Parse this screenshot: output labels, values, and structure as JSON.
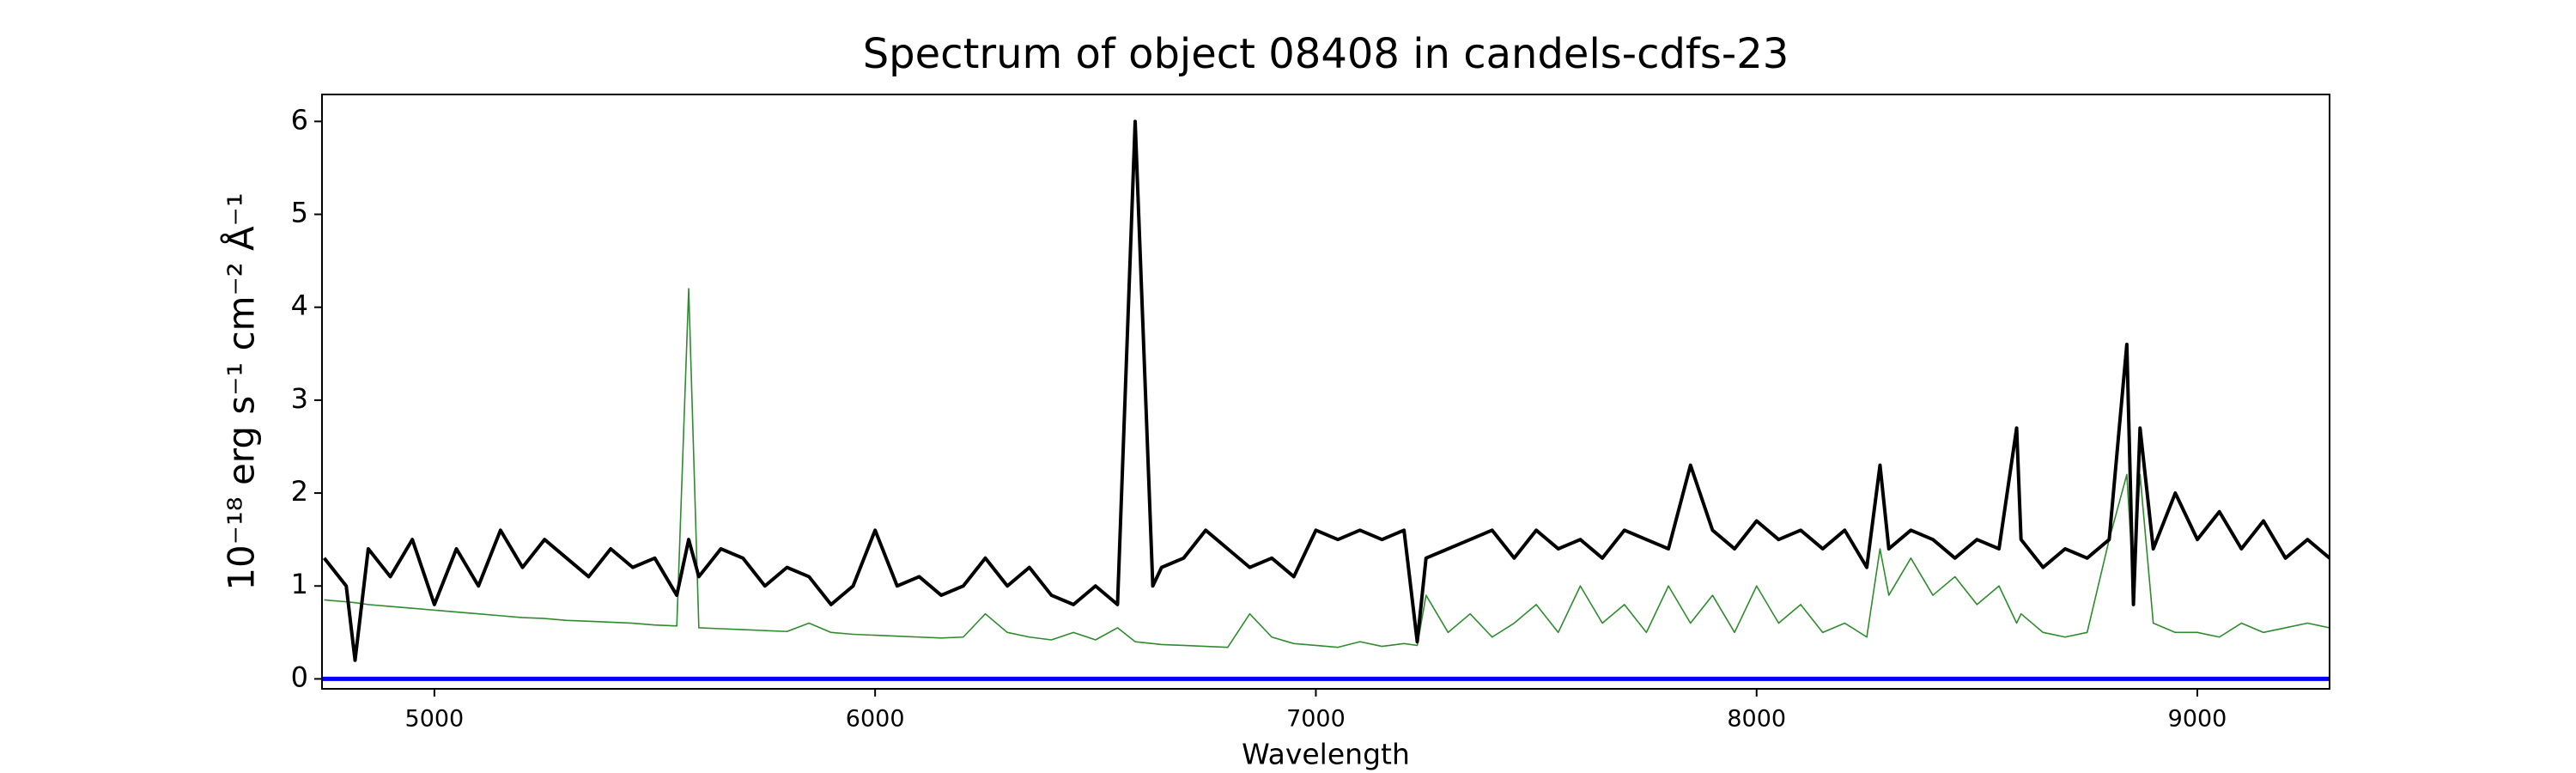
{
  "chart_data": {
    "type": "line",
    "title": "Spectrum of object 08408 in candels-cdfs-23",
    "x_label": "Wavelength",
    "y_label": "10⁻¹⁸ erg s⁻¹ cm⁻² Å⁻¹",
    "xlim": [
      4745,
      9300
    ],
    "ylim": [
      -0.107,
      6.29
    ],
    "xticks": [
      5000,
      6000,
      7000,
      8000,
      9000
    ],
    "yticks": [
      0,
      1,
      2,
      3,
      4,
      5,
      6
    ],
    "x": [
      4750,
      4800,
      4820,
      4850,
      4900,
      4950,
      5000,
      5050,
      5100,
      5150,
      5200,
      5250,
      5300,
      5350,
      5400,
      5450,
      5500,
      5550,
      5577,
      5600,
      5650,
      5700,
      5750,
      5800,
      5850,
      5900,
      5950,
      6000,
      6050,
      6100,
      6150,
      6200,
      6250,
      6300,
      6350,
      6400,
      6450,
      6500,
      6550,
      6590,
      6630,
      6650,
      6700,
      6750,
      6800,
      6850,
      6900,
      6950,
      7000,
      7050,
      7100,
      7150,
      7200,
      7230,
      7250,
      7300,
      7350,
      7400,
      7450,
      7500,
      7550,
      7600,
      7650,
      7700,
      7750,
      7800,
      7850,
      7900,
      7950,
      8000,
      8050,
      8100,
      8150,
      8200,
      8250,
      8280,
      8300,
      8350,
      8400,
      8450,
      8500,
      8550,
      8590,
      8600,
      8650,
      8700,
      8750,
      8800,
      8840,
      8855,
      8870,
      8900,
      8950,
      9000,
      9050,
      9100,
      9150,
      9200,
      9250,
      9300
    ],
    "series": [
      {
        "color": "#2e8b2e",
        "width": 1.6,
        "values": [
          0.85,
          0.83,
          0.82,
          0.8,
          0.78,
          0.76,
          0.74,
          0.72,
          0.7,
          0.68,
          0.66,
          0.65,
          0.63,
          0.62,
          0.61,
          0.6,
          0.58,
          0.57,
          4.2,
          0.55,
          0.54,
          0.53,
          0.52,
          0.51,
          0.6,
          0.5,
          0.48,
          0.47,
          0.46,
          0.45,
          0.44,
          0.45,
          0.7,
          0.5,
          0.45,
          0.42,
          0.5,
          0.42,
          0.55,
          0.4,
          0.38,
          0.37,
          0.36,
          0.35,
          0.34,
          0.7,
          0.45,
          0.38,
          0.36,
          0.34,
          0.4,
          0.35,
          0.38,
          0.36,
          0.9,
          0.5,
          0.7,
          0.45,
          0.6,
          0.8,
          0.5,
          1.0,
          0.6,
          0.8,
          0.5,
          1.0,
          0.6,
          0.9,
          0.5,
          1.0,
          0.6,
          0.8,
          0.5,
          0.6,
          0.45,
          1.4,
          0.9,
          1.3,
          0.9,
          1.1,
          0.8,
          1.0,
          0.6,
          0.7,
          0.5,
          0.45,
          0.5,
          1.5,
          2.2,
          1.0,
          2.2,
          0.6,
          0.5,
          0.5,
          0.45,
          0.6,
          0.5,
          0.55,
          0.6,
          0.55
        ]
      },
      {
        "color": "#000000",
        "width": 4,
        "values": [
          1.3,
          1.0,
          0.2,
          1.4,
          1.1,
          1.5,
          0.8,
          1.4,
          1.0,
          1.6,
          1.2,
          1.5,
          1.3,
          1.1,
          1.4,
          1.2,
          1.3,
          0.9,
          1.5,
          1.1,
          1.4,
          1.3,
          1.0,
          1.2,
          1.1,
          0.8,
          1.0,
          1.6,
          1.0,
          1.1,
          0.9,
          1.0,
          1.3,
          1.0,
          1.2,
          0.9,
          0.8,
          1.0,
          0.8,
          6.0,
          1.0,
          1.2,
          1.3,
          1.6,
          1.4,
          1.2,
          1.3,
          1.1,
          1.6,
          1.5,
          1.6,
          1.5,
          1.6,
          0.4,
          1.3,
          1.4,
          1.5,
          1.6,
          1.3,
          1.6,
          1.4,
          1.5,
          1.3,
          1.6,
          1.5,
          1.4,
          2.3,
          1.6,
          1.4,
          1.7,
          1.5,
          1.6,
          1.4,
          1.6,
          1.2,
          2.3,
          1.4,
          1.6,
          1.5,
          1.3,
          1.5,
          1.4,
          2.7,
          1.5,
          1.2,
          1.4,
          1.3,
          1.5,
          3.6,
          0.8,
          2.7,
          1.4,
          2.0,
          1.5,
          1.8,
          1.4,
          1.7,
          1.3,
          1.5,
          1.3
        ]
      },
      {
        "color": "#0000ff",
        "width": 5,
        "x": [
          4745,
          9300
        ],
        "values": [
          0,
          0
        ]
      }
    ]
  }
}
